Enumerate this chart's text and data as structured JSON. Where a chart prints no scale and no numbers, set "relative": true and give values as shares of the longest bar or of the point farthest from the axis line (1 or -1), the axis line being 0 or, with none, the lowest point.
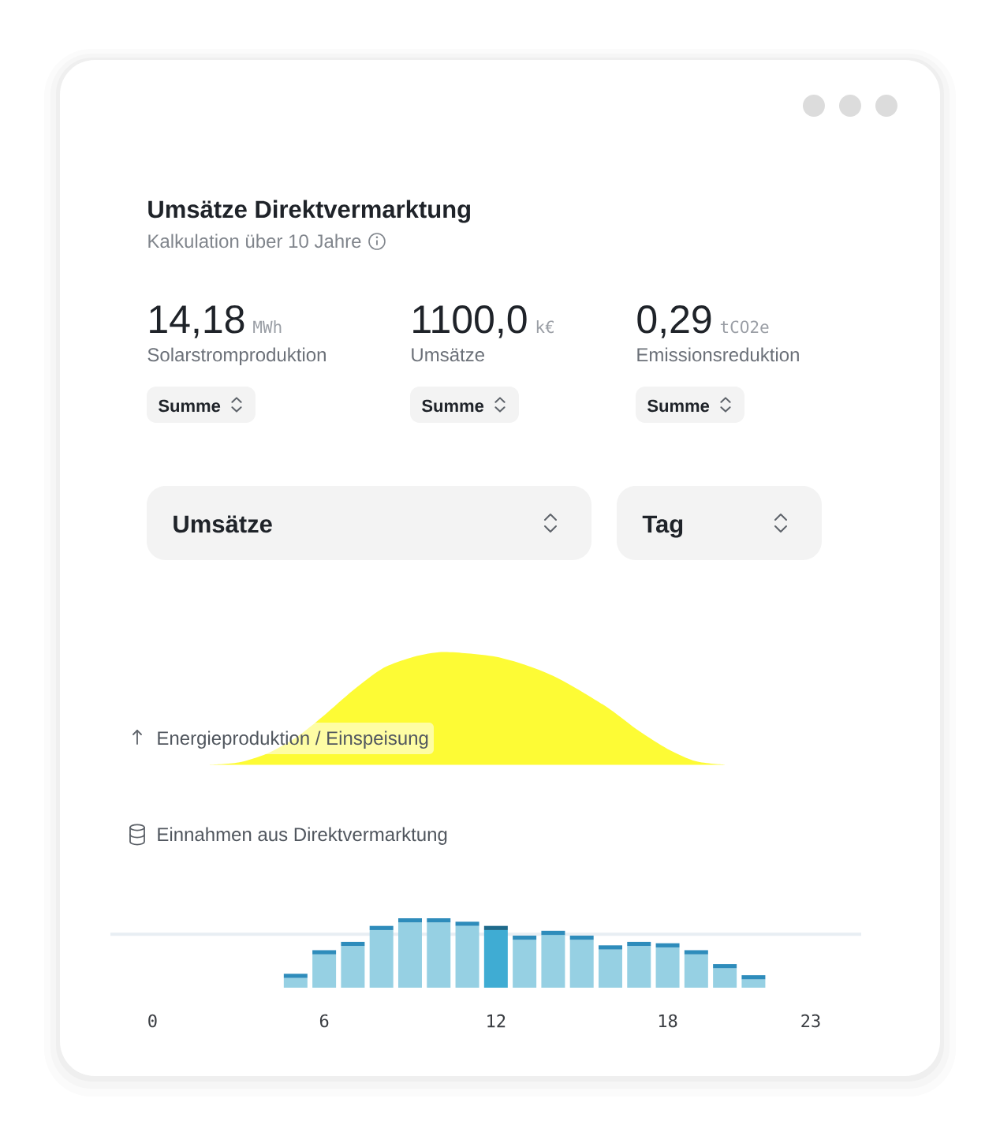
{
  "chart_data": [
    {
      "type": "other",
      "title": "Umsätze Direktvermarktung",
      "subtitle": "Kalkulation über 10 Jahre",
      "annotations": [
        "14,18",
        "MWh",
        "Solarstromproduktion",
        "Summe",
        "1100,0",
        "k€",
        "Umsätze",
        "Summe",
        "0,29",
        "tCO2e",
        "Emissionsreduktion",
        "Summe",
        "Umsätze",
        "Tag"
      ]
    },
    {
      "type": "area",
      "title": "Energieproduktion / Einspeisung",
      "relative": true,
      "tick_labels": false,
      "categories": [
        "0",
        null,
        null,
        null,
        null,
        null,
        "6",
        null,
        null,
        null,
        null,
        null,
        "12",
        null,
        null,
        null,
        null,
        null,
        "18",
        null,
        null,
        null,
        null,
        "23"
      ],
      "values": [
        null,
        null,
        0,
        0.02,
        0.1,
        0.24,
        0.44,
        0.66,
        0.85,
        0.95,
        1.0,
        0.99,
        0.96,
        0.89,
        0.79,
        0.65,
        0.49,
        0.3,
        0.14,
        0.03,
        0,
        null,
        null,
        null
      ],
      "color": "#fdfb35"
    },
    {
      "type": "bar",
      "title": "Einnahmen aus Direktvermarktung",
      "relative": true,
      "stacked": true,
      "categories": [
        "0",
        null,
        null,
        null,
        null,
        null,
        "6",
        null,
        null,
        null,
        null,
        null,
        "12",
        null,
        null,
        null,
        null,
        null,
        "18",
        null,
        null,
        null,
        null,
        "23"
      ],
      "series": [
        {
          "colors": [
            null,
            null,
            null,
            null,
            null,
            "#96d0e3",
            "#96d0e3",
            "#96d0e3",
            "#96d0e3",
            "#96d0e3",
            "#96d0e3",
            "#96d0e3",
            "#3facd3",
            "#96d0e3",
            "#96d0e3",
            "#96d0e3",
            "#96d0e3",
            "#96d0e3",
            "#96d0e3",
            "#96d0e3",
            "#96d0e3",
            "#96d0e3",
            null,
            null
          ],
          "values": [
            null,
            null,
            null,
            null,
            null,
            0.14,
            0.48,
            0.6,
            0.83,
            0.94,
            0.94,
            0.89,
            0.83,
            0.69,
            0.76,
            0.69,
            0.55,
            0.6,
            0.58,
            0.48,
            0.28,
            0.12,
            null,
            null
          ]
        },
        {
          "colors": [
            null,
            null,
            null,
            null,
            null,
            "#2e8cbb",
            "#2e8cbb",
            "#2e8cbb",
            "#2e8cbb",
            "#2e8cbb",
            "#2e8cbb",
            "#2e8cbb",
            "#1e6a8b",
            "#2e8cbb",
            "#2e8cbb",
            "#2e8cbb",
            "#2e8cbb",
            "#2e8cbb",
            "#2e8cbb",
            "#2e8cbb",
            "#2e8cbb",
            "#2e8cbb",
            null,
            null
          ],
          "values": [
            null,
            null,
            null,
            null,
            null,
            0.06,
            0.06,
            0.06,
            0.06,
            0.06,
            0.06,
            0.06,
            0.06,
            0.06,
            0.06,
            0.06,
            0.06,
            0.06,
            0.06,
            0.06,
            0.06,
            0.06,
            null,
            null
          ]
        }
      ],
      "ref_lines": [
        {
          "axis": "y",
          "value": 0.77,
          "color": "#e8eef3"
        }
      ]
    }
  ]
}
